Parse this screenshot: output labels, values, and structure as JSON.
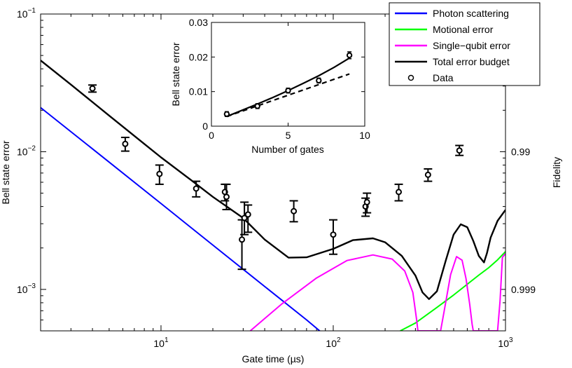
{
  "chart_data": {
    "type": "line",
    "xlabel": "Gate time (µs)",
    "ylabel": "Bell state error",
    "ylabel_right": "Fidelity",
    "xscale": "log",
    "yscale": "log",
    "xlim": [
      2,
      1000
    ],
    "ylim": [
      0.0005,
      0.1
    ],
    "x_ticks": [
      {
        "value": 10,
        "base": "10",
        "exp": "1"
      },
      {
        "value": 100,
        "base": "10",
        "exp": "2"
      },
      {
        "value": 1000,
        "base": "10",
        "exp": "3"
      }
    ],
    "y_ticks": [
      {
        "value": 0.001,
        "base": "10",
        "exp": "−3"
      },
      {
        "value": 0.01,
        "base": "10",
        "exp": "−2"
      },
      {
        "value": 0.1,
        "base": "10",
        "exp": "−1"
      }
    ],
    "fidelity_ticks": [
      {
        "value": 0.01,
        "label": "0.99"
      },
      {
        "value": 0.001,
        "label": "0.999"
      }
    ],
    "series": [
      {
        "name": "Photon scattering",
        "color": "#0000ff",
        "x": [
          2,
          5,
          10,
          20,
          30,
          50,
          70,
          85
        ],
        "y": [
          0.0209,
          0.0084,
          0.0042,
          0.0021,
          0.0014,
          0.00084,
          0.0006,
          0.00049
        ]
      },
      {
        "name": "Motional error",
        "color": "#00ff00",
        "x": [
          245,
          300,
          400,
          500,
          600,
          700,
          800,
          900,
          1000
        ],
        "y": [
          0.0005,
          0.00057,
          0.00074,
          0.00091,
          0.00109,
          0.00127,
          0.00144,
          0.00164,
          0.00188
        ]
      },
      {
        "name": "Single−qubit error",
        "color": "#ff00ff",
        "x": [
          33,
          50,
          80,
          120,
          170,
          220,
          260,
          290,
          305,
          310,
          420,
          440,
          480,
          520,
          560,
          590,
          620,
          640,
          650,
          900,
          930,
          960,
          1000
        ],
        "y": [
          0.0005,
          0.00078,
          0.00121,
          0.00162,
          0.00178,
          0.00166,
          0.00136,
          0.00095,
          0.0006,
          0.0005,
          0.0005,
          0.00069,
          0.00128,
          0.00173,
          0.00163,
          0.0012,
          0.00078,
          0.00056,
          0.0005,
          0.0005,
          0.00082,
          0.00171,
          0.00182
        ]
      },
      {
        "name": "Total error budget",
        "color": "#000000",
        "x": [
          2,
          3,
          5,
          8,
          10,
          15,
          20,
          30,
          40,
          55,
          70,
          100,
          130,
          170,
          200,
          250,
          300,
          330,
          360,
          400,
          450,
          500,
          550,
          600,
          650,
          700,
          750,
          780,
          820,
          900,
          1000
        ],
        "y": [
          0.046,
          0.0307,
          0.0183,
          0.0114,
          0.0091,
          0.0062,
          0.0047,
          0.0033,
          0.0023,
          0.0017,
          0.00171,
          0.00197,
          0.00228,
          0.00235,
          0.0022,
          0.00175,
          0.00126,
          0.00095,
          0.00085,
          0.00097,
          0.00162,
          0.0025,
          0.00297,
          0.00283,
          0.00225,
          0.00175,
          0.00157,
          0.00183,
          0.00238,
          0.00315,
          0.00378
        ]
      },
      {
        "name": "Data",
        "marker": "circle",
        "points": [
          {
            "x": 4.0,
            "y": 0.0288,
            "lo": 0.0271,
            "hi": 0.0305
          },
          {
            "x": 6.2,
            "y": 0.0114,
            "lo": 0.0101,
            "hi": 0.0127
          },
          {
            "x": 9.8,
            "y": 0.0069,
            "lo": 0.0058,
            "hi": 0.008
          },
          {
            "x": 16,
            "y": 0.0054,
            "lo": 0.0047,
            "hi": 0.0061
          },
          {
            "x": 23.5,
            "y": 0.0051,
            "lo": 0.0044,
            "hi": 0.0058
          },
          {
            "x": 24,
            "y": 0.0047,
            "lo": 0.0038,
            "hi": 0.0058
          },
          {
            "x": 29.5,
            "y": 0.0023,
            "lo": 0.0014,
            "hi": 0.0032
          },
          {
            "x": 30.5,
            "y": 0.0033,
            "lo": 0.0025,
            "hi": 0.0043
          },
          {
            "x": 32,
            "y": 0.0035,
            "lo": 0.0026,
            "hi": 0.0041
          },
          {
            "x": 59,
            "y": 0.0037,
            "lo": 0.0031,
            "hi": 0.0044
          },
          {
            "x": 100,
            "y": 0.0025,
            "lo": 0.0018,
            "hi": 0.0032
          },
          {
            "x": 154,
            "y": 0.004,
            "lo": 0.0034,
            "hi": 0.0046
          },
          {
            "x": 157,
            "y": 0.0043,
            "lo": 0.0036,
            "hi": 0.005
          },
          {
            "x": 240,
            "y": 0.0051,
            "lo": 0.0044,
            "hi": 0.0058
          },
          {
            "x": 355,
            "y": 0.0068,
            "lo": 0.0061,
            "hi": 0.0075
          },
          {
            "x": 540,
            "y": 0.0102,
            "lo": 0.0094,
            "hi": 0.0111
          }
        ]
      }
    ],
    "legend": [
      "Photon scattering",
      "Motional error",
      "Single−qubit error",
      "Total error budget",
      "Data"
    ],
    "legend_position": "top-right",
    "inset": {
      "type": "line",
      "xlabel": "Number of gates",
      "ylabel": "Bell state error",
      "xlim": [
        0,
        10
      ],
      "ylim": [
        0,
        0.03
      ],
      "x_ticks": [
        {
          "value": 0,
          "label": "0"
        },
        {
          "value": 5,
          "label": "5"
        },
        {
          "value": 10,
          "label": "10"
        }
      ],
      "y_ticks": [
        {
          "value": 0,
          "label": "0"
        },
        {
          "value": 0.01,
          "label": "0.01"
        },
        {
          "value": 0.02,
          "label": "0.02"
        },
        {
          "value": 0.03,
          "label": "0.03"
        }
      ],
      "series": [
        {
          "name": "solid fit",
          "style": "solid",
          "x": [
            1,
            2,
            3,
            4,
            5,
            6,
            7,
            8,
            9
          ],
          "y": [
            0.0028,
            0.0046,
            0.0064,
            0.0083,
            0.0103,
            0.0124,
            0.0146,
            0.017,
            0.0197
          ]
        },
        {
          "name": "dashed fit",
          "style": "dashed",
          "x": [
            1,
            9
          ],
          "y": [
            0.0028,
            0.0151
          ]
        },
        {
          "name": "data",
          "marker": "circle",
          "points": [
            {
              "x": 1,
              "y": 0.0035,
              "lo": 0.0028,
              "hi": 0.0042
            },
            {
              "x": 3,
              "y": 0.0058,
              "lo": 0.0051,
              "hi": 0.0065
            },
            {
              "x": 5,
              "y": 0.0103,
              "lo": 0.0096,
              "hi": 0.011
            },
            {
              "x": 7,
              "y": 0.0132,
              "lo": 0.0125,
              "hi": 0.0139
            },
            {
              "x": 9,
              "y": 0.0205,
              "lo": 0.0195,
              "hi": 0.0215
            }
          ]
        }
      ]
    }
  }
}
